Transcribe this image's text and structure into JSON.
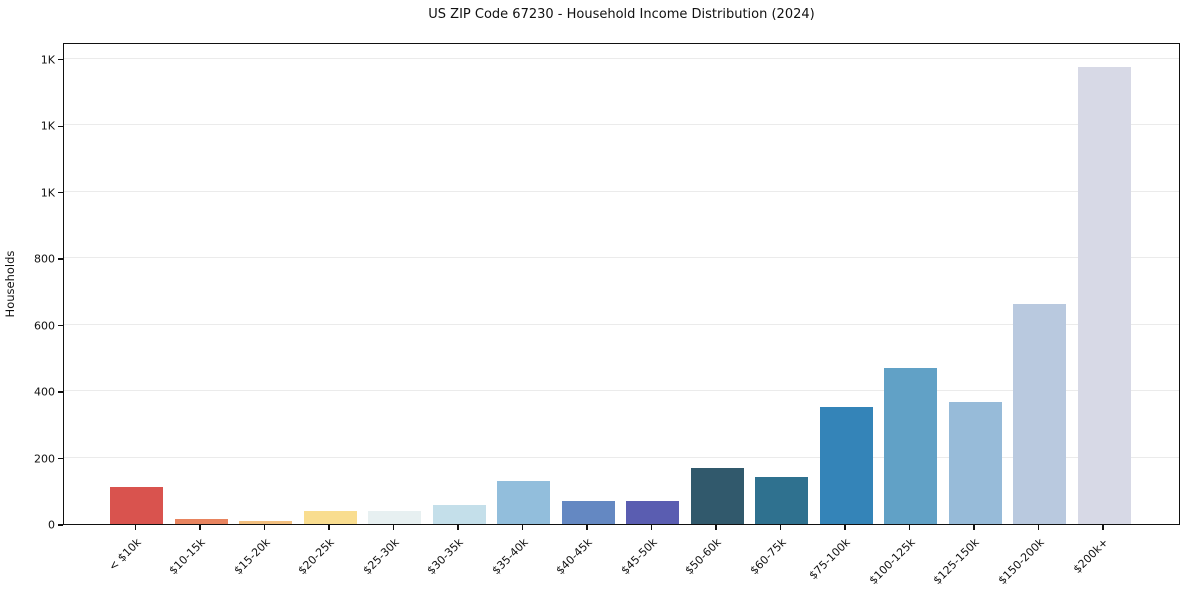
{
  "chart_data": {
    "type": "bar",
    "title": "US ZIP Code 67230 - Household Income Distribution (2024)",
    "xlabel": "",
    "ylabel": "Households",
    "ylim": [
      0,
      1450
    ],
    "grid": "horizontal-light-gray",
    "legend": "none",
    "categories": [
      "< $10k",
      "$10-15k",
      "$15-20k",
      "$20-25k",
      "$25-30k",
      "$30-35k",
      "$35-40k",
      "$40-45k",
      "$45-50k",
      "$50-60k",
      "$60-75k",
      "$75-100k",
      "$100-125k",
      "$125-150k",
      "$150-200k",
      "$200k+"
    ],
    "values": [
      110,
      15,
      10,
      40,
      38,
      56,
      128,
      68,
      70,
      170,
      140,
      352,
      470,
      366,
      662,
      1375
    ],
    "bar_colors": [
      "#d9534e",
      "#e8845f",
      "#f2bf7f",
      "#f9dd8f",
      "#e7f0f1",
      "#c4dfea",
      "#92bedc",
      "#6488c2",
      "#5a5db1",
      "#31596c",
      "#2f718f",
      "#3484b8",
      "#61a1c6",
      "#97bbd9",
      "#b9c9df",
      "#d7d9e6"
    ],
    "y_ticks": [
      {
        "value": 0,
        "label": "0"
      },
      {
        "value": 200,
        "label": "200"
      },
      {
        "value": 400,
        "label": "400"
      },
      {
        "value": 600,
        "label": "600"
      },
      {
        "value": 800,
        "label": "800"
      },
      {
        "value": 1000,
        "label": "1K"
      },
      {
        "value": 1200,
        "label": "1K"
      },
      {
        "value": 1400,
        "label": "1K"
      }
    ],
    "colors": {
      "spine": "#111111",
      "gridline": "#ebebeb",
      "text": "#111111",
      "background": "#ffffff"
    }
  }
}
